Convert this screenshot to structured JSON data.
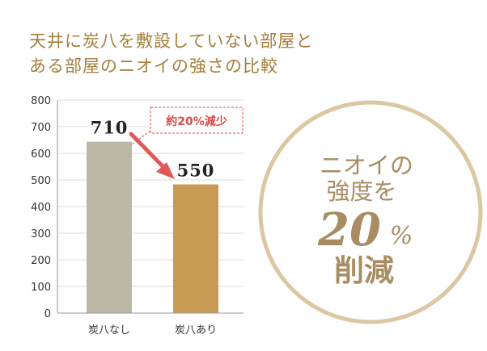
{
  "title": {
    "line1": "天井に炭八を敷設していない部屋と",
    "line2": "ある部屋のニオイの強さの比較"
  },
  "chart_data": {
    "type": "bar",
    "categories": [
      "炭八なし",
      "炭八あり"
    ],
    "values": [
      710,
      550
    ],
    "data_labels": [
      "710",
      "550"
    ],
    "yticks": [
      0,
      100,
      200,
      300,
      400,
      500,
      600,
      700,
      800
    ],
    "ylim": [
      0,
      800
    ],
    "grid": true,
    "xlabel": "",
    "ylabel": ""
  },
  "annotation": {
    "text": "約20%減少"
  },
  "badge": {
    "line1": "ニオイの",
    "line2": "強度を",
    "number": "20",
    "unit": "%",
    "line3": "削減"
  },
  "colors": {
    "bar_without": "#bbb8a6",
    "bar_with": "#c79a56",
    "title": "#a57e3c",
    "circle": "#dcc7a3",
    "circle_text": "#a88d63",
    "annotation": "#d94a4a",
    "grid": "#dddddd"
  }
}
